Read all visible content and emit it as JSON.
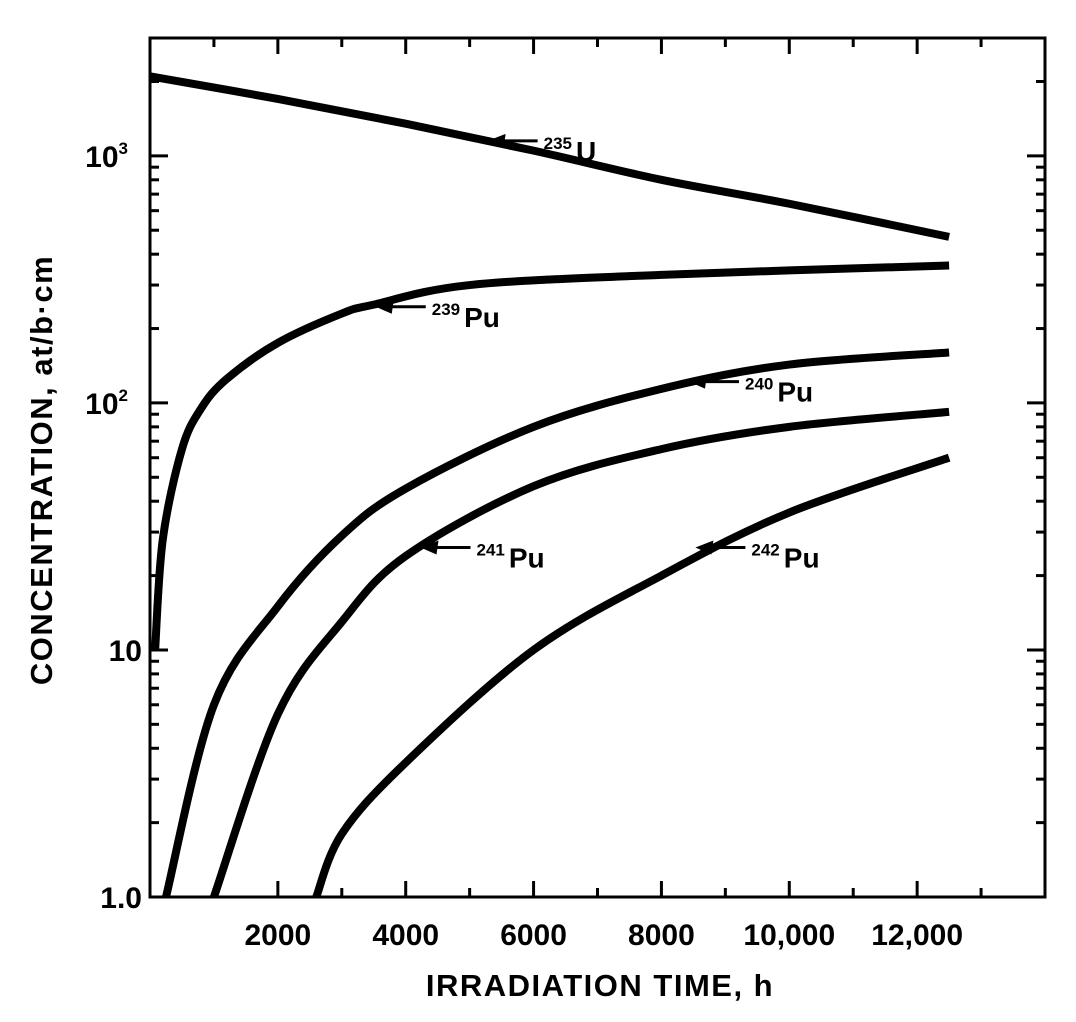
{
  "chart_data": {
    "type": "line",
    "title": "",
    "xlabel": "IRRADIATION TIME, h",
    "ylabel": "CONCENTRATION, at/b·cm",
    "xscale": "linear",
    "yscale": "log",
    "xlim": [
      0,
      14000
    ],
    "ylim": [
      1.0,
      3000
    ],
    "grid": false,
    "x_tick_labels": [
      {
        "value": 2000,
        "label": "2000"
      },
      {
        "value": 4000,
        "label": "4000"
      },
      {
        "value": 6000,
        "label": "6000"
      },
      {
        "value": 8000,
        "label": "8000"
      },
      {
        "value": 10000,
        "label": "10,000"
      },
      {
        "value": 12000,
        "label": "12,000"
      }
    ],
    "y_tick_labels": [
      {
        "value": 1,
        "label": "1.0",
        "sup": ""
      },
      {
        "value": 10,
        "label": "10",
        "sup": ""
      },
      {
        "value": 100,
        "label": "10",
        "sup": "2"
      },
      {
        "value": 1000,
        "label": "10",
        "sup": "3"
      }
    ],
    "series": [
      {
        "name": "235U",
        "isotope_mass": "235",
        "element": "U",
        "label_at": [
          5250,
          1150
        ],
        "x": [
          0,
          2000,
          4000,
          6000,
          8000,
          10000,
          12500
        ],
        "values": [
          2100,
          1700,
          1350,
          1050,
          800,
          640,
          470
        ]
      },
      {
        "name": "239Pu",
        "isotope_mass": "239",
        "element": "Pu",
        "label_at": [
          3500,
          245
        ],
        "x": [
          80,
          200,
          500,
          800,
          1200,
          2000,
          3000,
          3500,
          5000,
          8000,
          12500
        ],
        "values": [
          10,
          28,
          65,
          95,
          125,
          175,
          230,
          250,
          300,
          330,
          360
        ]
      },
      {
        "name": "240Pu",
        "isotope_mass": "240",
        "element": "Pu",
        "label_at": [
          8400,
          122
        ],
        "x": [
          250,
          1000,
          2000,
          3000,
          4000,
          6000,
          8000,
          10000,
          12500
        ],
        "values": [
          1,
          6,
          15,
          29,
          45,
          80,
          114,
          143,
          160
        ]
      },
      {
        "name": "241Pu",
        "isotope_mass": "241",
        "element": "Pu",
        "label_at": [
          4200,
          26
        ],
        "x": [
          1000,
          2000,
          3000,
          4000,
          6000,
          8000,
          10000,
          12500
        ],
        "values": [
          1,
          5.5,
          13,
          24,
          46,
          65,
          80,
          92
        ]
      },
      {
        "name": "242Pu",
        "isotope_mass": "242",
        "element": "Pu",
        "label_at": [
          8500,
          26
        ],
        "x": [
          2600,
          3000,
          4000,
          6000,
          8000,
          10000,
          12500
        ],
        "values": [
          1,
          1.8,
          3.5,
          10,
          20,
          36,
          60
        ]
      }
    ]
  }
}
